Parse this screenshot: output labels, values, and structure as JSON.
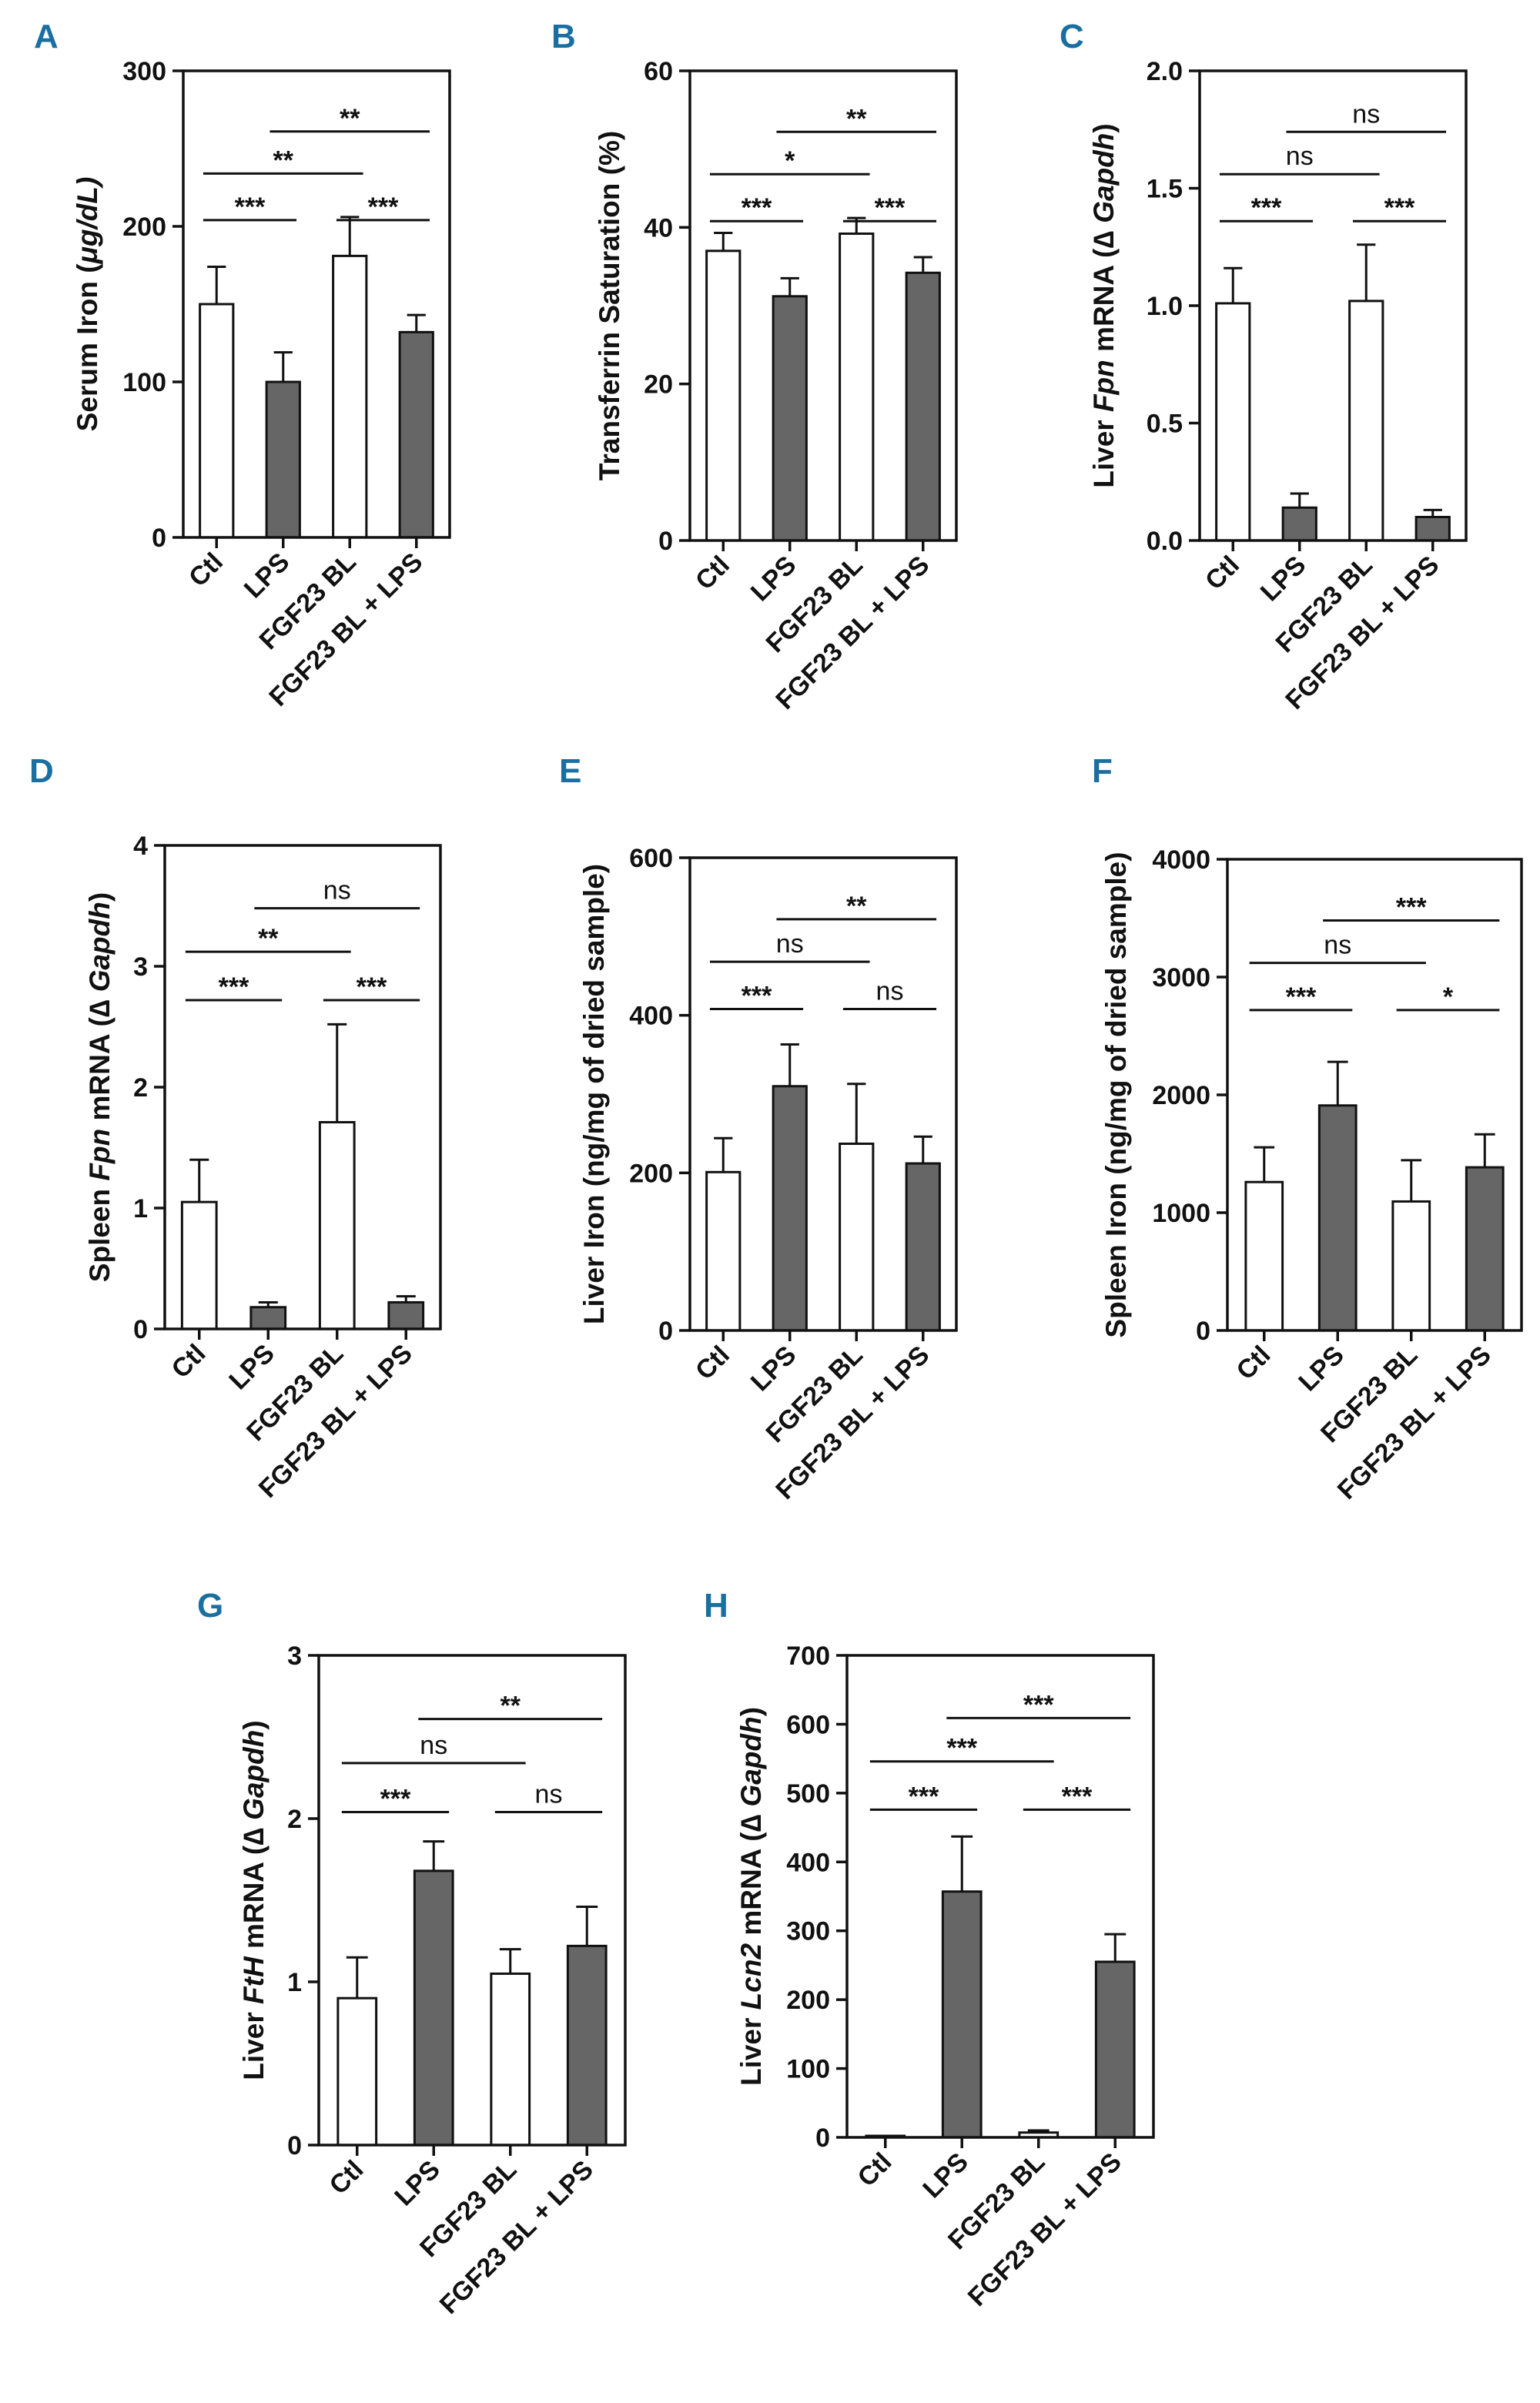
{
  "chart_data": [
    {
      "panel": "A",
      "type": "bar",
      "categories": [
        "Ctl",
        "LPS",
        "FGF23 BL",
        "FGF23 BL + LPS"
      ],
      "values": [
        150,
        100,
        181,
        132
      ],
      "errors": [
        24,
        19,
        25,
        11
      ],
      "ylabel_parts": [
        "Serum Iron (",
        "μg/dL)"
      ],
      "ylim": [
        0,
        300
      ],
      "yticks": [
        "0",
        "100",
        "200",
        "300"
      ],
      "comparisons": [
        {
          "from": 0,
          "to": 1,
          "label": "***"
        },
        {
          "from": 0,
          "to": 2,
          "label": "**"
        },
        {
          "from": 1,
          "to": 3,
          "label": "**"
        },
        {
          "from": 2,
          "to": 3,
          "label": "***"
        }
      ]
    },
    {
      "panel": "B",
      "type": "bar",
      "categories": [
        "Ctl",
        "LPS",
        "FGF23 BL",
        "FGF23 BL + LPS"
      ],
      "values": [
        37,
        31.2,
        39.2,
        34.2
      ],
      "errors": [
        2.3,
        2.3,
        2.0,
        2.0
      ],
      "ylabel_parts": [
        "Transferrin Saturation (%)"
      ],
      "ylim": [
        0,
        60
      ],
      "yticks": [
        "0",
        "20",
        "40",
        "60"
      ],
      "comparisons": [
        {
          "from": 0,
          "to": 1,
          "label": "***"
        },
        {
          "from": 0,
          "to": 2,
          "label": "*"
        },
        {
          "from": 1,
          "to": 3,
          "label": "**"
        },
        {
          "from": 2,
          "to": 3,
          "label": "***"
        }
      ]
    },
    {
      "panel": "C",
      "type": "bar",
      "categories": [
        "Ctl",
        "LPS",
        "FGF23 BL",
        "FGF23 BL + LPS"
      ],
      "values": [
        1.01,
        0.14,
        1.02,
        0.1
      ],
      "errors": [
        0.15,
        0.06,
        0.24,
        0.03
      ],
      "ylabel_parts": [
        "Liver ",
        "Fpn",
        " mRNA (∆ ",
        "Gapdh",
        ")"
      ],
      "ylim": [
        0,
        2.0
      ],
      "yticks": [
        "0.0",
        "0.5",
        "1.0",
        "1.5",
        "2.0"
      ],
      "comparisons": [
        {
          "from": 0,
          "to": 1,
          "label": "***"
        },
        {
          "from": 0,
          "to": 2,
          "label": "ns"
        },
        {
          "from": 1,
          "to": 3,
          "label": "ns"
        },
        {
          "from": 2,
          "to": 3,
          "label": "***"
        }
      ]
    },
    {
      "panel": "D",
      "type": "bar",
      "categories": [
        "Ctl",
        "LPS",
        "FGF23 BL",
        "FGF23 BL + LPS"
      ],
      "values": [
        1.05,
        0.18,
        1.71,
        0.22
      ],
      "errors": [
        0.35,
        0.04,
        0.81,
        0.05
      ],
      "ylabel_parts": [
        "Spleen ",
        "Fpn",
        " mRNA (∆ ",
        "Gapdh",
        ")"
      ],
      "ylim": [
        0,
        4
      ],
      "yticks": [
        "0",
        "1",
        "2",
        "3",
        "4"
      ],
      "comparisons": [
        {
          "from": 0,
          "to": 1,
          "label": "***"
        },
        {
          "from": 0,
          "to": 2,
          "label": "**"
        },
        {
          "from": 1,
          "to": 3,
          "label": "ns"
        },
        {
          "from": 2,
          "to": 3,
          "label": "***"
        }
      ]
    },
    {
      "panel": "E",
      "type": "bar",
      "categories": [
        "Ctl",
        "LPS",
        "FGF23 BL",
        "FGF23 BL + LPS"
      ],
      "values": [
        201,
        310,
        237,
        212
      ],
      "errors": [
        43,
        53,
        76,
        34
      ],
      "ylabel_parts": [
        "Liver Iron (ng/mg of dried sample)"
      ],
      "ylim": [
        0,
        600
      ],
      "yticks": [
        "0",
        "200",
        "400",
        "600"
      ],
      "comparisons": [
        {
          "from": 0,
          "to": 1,
          "label": "***"
        },
        {
          "from": 0,
          "to": 2,
          "label": "ns"
        },
        {
          "from": 1,
          "to": 3,
          "label": "**"
        },
        {
          "from": 2,
          "to": 3,
          "label": "ns"
        }
      ]
    },
    {
      "panel": "F",
      "type": "bar",
      "categories": [
        "Ctl",
        "LPS",
        "FGF23 BL",
        "FGF23 BL + LPS"
      ],
      "values": [
        1260,
        1910,
        1095,
        1385
      ],
      "errors": [
        295,
        370,
        350,
        280
      ],
      "ylabel_parts": [
        "Spleen Iron (ng/mg of dried sample)"
      ],
      "ylim": [
        0,
        4000
      ],
      "yticks": [
        "0",
        "1000",
        "2000",
        "3000",
        "4000"
      ],
      "comparisons": [
        {
          "from": 0,
          "to": 1,
          "label": "***"
        },
        {
          "from": 0,
          "to": 2,
          "label": "ns"
        },
        {
          "from": 1,
          "to": 3,
          "label": "***"
        },
        {
          "from": 2,
          "to": 3,
          "label": "*"
        }
      ]
    },
    {
      "panel": "G",
      "type": "bar",
      "categories": [
        "Ctl",
        "LPS",
        "FGF23 BL",
        "FGF23 BL + LPS"
      ],
      "values": [
        0.9,
        1.68,
        1.05,
        1.22
      ],
      "errors": [
        0.25,
        0.18,
        0.15,
        0.24
      ],
      "ylabel_parts": [
        "Liver ",
        "FtH",
        " mRNA (∆ ",
        "Gapdh",
        ")"
      ],
      "ylim": [
        0,
        3
      ],
      "yticks": [
        "0",
        "1",
        "2",
        "3"
      ],
      "comparisons": [
        {
          "from": 0,
          "to": 1,
          "label": "***"
        },
        {
          "from": 0,
          "to": 2,
          "label": "ns"
        },
        {
          "from": 1,
          "to": 3,
          "label": "**"
        },
        {
          "from": 2,
          "to": 3,
          "label": "ns"
        }
      ]
    },
    {
      "panel": "H",
      "type": "bar",
      "categories": [
        "Ctl",
        "LPS",
        "FGF23 BL",
        "FGF23 BL + LPS"
      ],
      "values": [
        1,
        357,
        7,
        255
      ],
      "errors": [
        0,
        80,
        3,
        40
      ],
      "ylabel_parts": [
        "Liver ",
        "Lcn2",
        " mRNA (∆ ",
        "Gapdh",
        ")"
      ],
      "ylim": [
        0,
        700
      ],
      "yticks": [
        "0",
        "100",
        "200",
        "300",
        "400",
        "500",
        "600",
        "700"
      ],
      "comparisons": [
        {
          "from": 0,
          "to": 1,
          "label": "***"
        },
        {
          "from": 0,
          "to": 2,
          "label": "***"
        },
        {
          "from": 1,
          "to": 3,
          "label": "***"
        },
        {
          "from": 2,
          "to": 3,
          "label": "***"
        }
      ]
    }
  ],
  "colors": {
    "control_fill": "#ffffff",
    "lps_fill": "#666666",
    "outline": "#111111",
    "panel_letter": "#1a6fa0"
  }
}
